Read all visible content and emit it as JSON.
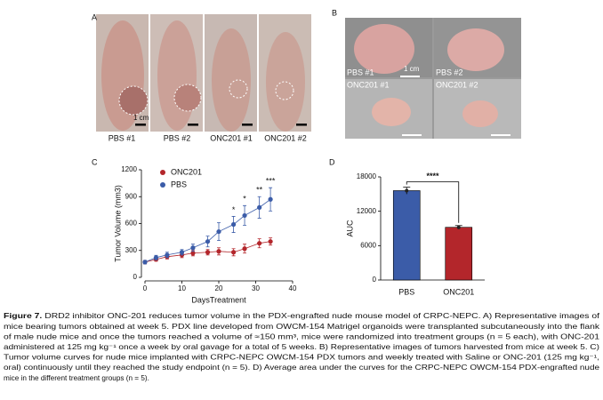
{
  "figure": {
    "panel_a": {
      "letter": "A",
      "labels": [
        "PBS #1",
        "PBS #2",
        "ONC201 #1",
        "ONC201 #2"
      ],
      "scale": "1 cm"
    },
    "panel_b": {
      "letter": "B",
      "labels": [
        "PBS #1",
        "PBS #2",
        "ONC201 #1",
        "ONC201 #2"
      ],
      "scale": "1 cm"
    },
    "panel_c": {
      "letter": "C"
    },
    "panel_d": {
      "letter": "D"
    }
  },
  "chart_data": [
    {
      "type": "line",
      "xlabel": "DaysTreatment",
      "ylabel": "Tumor Volume (mm3)",
      "x": [
        0,
        3,
        6,
        10,
        13,
        17,
        20,
        24,
        27,
        31,
        34
      ],
      "series": [
        {
          "name": "ONC201",
          "color": "#b3262b",
          "values": [
            170,
            200,
            230,
            250,
            270,
            280,
            290,
            280,
            320,
            380,
            400
          ],
          "errors": [
            20,
            20,
            25,
            30,
            30,
            30,
            40,
            40,
            50,
            50,
            40
          ]
        },
        {
          "name": "PBS",
          "color": "#3b5ca8",
          "values": [
            170,
            220,
            250,
            280,
            330,
            400,
            510,
            590,
            690,
            780,
            870
          ],
          "errors": [
            20,
            25,
            30,
            30,
            40,
            60,
            100,
            90,
            110,
            120,
            130
          ]
        }
      ],
      "annotations": [
        {
          "text": "*",
          "x": 24
        },
        {
          "text": "*",
          "x": 27
        },
        {
          "text": "**",
          "x": 31
        },
        {
          "text": "***",
          "x": 34
        }
      ],
      "xlim": [
        0,
        40
      ],
      "xticks": [
        0,
        10,
        20,
        30,
        40
      ],
      "ylim": [
        0,
        1200
      ],
      "yticks": [
        0,
        300,
        600,
        900,
        1200
      ],
      "legend": "top-left"
    },
    {
      "type": "bar",
      "ylabel": "AUC",
      "categories": [
        "PBS",
        "ONC201"
      ],
      "values": [
        15600,
        9200
      ],
      "errors": [
        600,
        300
      ],
      "colors": [
        "#3b5ca8",
        "#b3262b"
      ],
      "annotation": "****",
      "ylim": [
        0,
        18000
      ],
      "yticks": [
        0,
        6000,
        12000,
        18000
      ]
    }
  ],
  "caption": {
    "label": "Figure 7.",
    "lines": [
      " DRD2 inhibitor ONC-201 reduces tumor volume in the PDX-engrafted nude mouse model of CRPC-NEPC. A) Representative images of",
      "mice bearing tumors obtained at week 5. PDX line developed from OWCM-154 Matrigel organoids were transplanted subcutaneously into the flank",
      "of male nude mice and once the tumors reached a volume of ≈150 mm³, mice were randomized into treatment groups (n = 5 each), with ONC-201",
      "administered at 125 mg kg⁻¹ once a week by oral gavage for a total of 5 weeks. B) Representative images of tumors harvested from mice at week 5. C)",
      "Tumor volume curves for nude mice implanted with CRPC-NEPC OWCM-154 PDX tumors and weekly treated with Saline or ONC-201 (125 mg kg⁻¹,",
      "oral) continuously until they reached the study endpoint (n = 5). D) Average area under the curves for the CRPC-NEPC OWCM-154 PDX-engrafted nude",
      "mice in the different treatment groups (n = 5)."
    ]
  }
}
